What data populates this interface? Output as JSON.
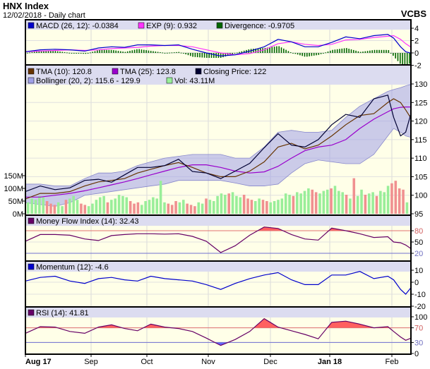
{
  "header": {
    "title": "HNX Index",
    "subtitle": "12/02/2018 - Daily chart",
    "brand": "VCBS"
  },
  "legends": {
    "macd": {
      "macd": "MACD (26, 12): -0.0384",
      "exp": "EXP (9): 0.932",
      "divergence": "Divergence: -0.9705"
    },
    "price": {
      "tma10": "TMA (10): 120.8",
      "tma25": "TMA (25): 123.8",
      "close": "Closing Price: 122",
      "bollinger": "Bollinger (20, 2): 115.6 - 129.9",
      "vol": "Vol: 43.11M"
    },
    "mfi": "Money Flow Index (14): 32.43",
    "momentum": "Momentum (12): -4.6",
    "rsi": "RSI (14): 41.81"
  },
  "colors": {
    "macd": "#0000cc",
    "exp": "#ff33ff",
    "divergence": "#006600",
    "tma10": "#663300",
    "tma25": "#9900cc",
    "close": "#000033",
    "bollinger": "#a0a0e8",
    "vol_up": "#99ee99",
    "vol_down": "#f09090",
    "mfi": "#660066",
    "momentum": "#0000cc",
    "rsi": "#660066",
    "overbought": "#ff6060",
    "oversold": "#6666ff",
    "plot_bg": "#ffffe8",
    "legend_bg": "#dcdcf0"
  },
  "chart_data": [
    {
      "type": "line",
      "panel": "macd",
      "x": [
        "2017-08-01",
        "2017-08-08",
        "2017-08-15",
        "2017-08-22",
        "2017-08-29",
        "2017-09-05",
        "2017-09-12",
        "2017-09-19",
        "2017-09-26",
        "2017-10-03",
        "2017-10-10",
        "2017-10-17",
        "2017-10-24",
        "2017-10-31",
        "2017-11-07",
        "2017-11-14",
        "2017-11-21",
        "2017-11-28",
        "2017-12-05",
        "2017-12-12",
        "2017-12-19",
        "2017-12-26",
        "2018-01-02",
        "2018-01-09",
        "2018-01-16",
        "2018-01-23",
        "2018-01-30",
        "2018-02-02",
        "2018-02-06",
        "2018-02-09",
        "2018-02-12"
      ],
      "series": [
        {
          "name": "MACD (26, 12)",
          "values": [
            0.2,
            0.5,
            0.6,
            0.5,
            0.3,
            0.8,
            1.0,
            0.9,
            1.3,
            1.3,
            1.2,
            1.3,
            0.6,
            0,
            -0.5,
            -0.3,
            0.3,
            1.0,
            2.2,
            1.8,
            1.0,
            1.0,
            1.7,
            2.6,
            2.3,
            2.8,
            3.0,
            2.4,
            1.0,
            0.2,
            -0.04
          ]
        },
        {
          "name": "EXP (9)",
          "values": [
            0.2,
            0.3,
            0.4,
            0.5,
            0.4,
            0.5,
            0.7,
            0.8,
            0.9,
            1.1,
            1.2,
            1.2,
            1.0,
            0.5,
            0,
            -0.3,
            -0.1,
            0.5,
            1.5,
            1.8,
            1.4,
            1.2,
            1.4,
            2.1,
            2.2,
            2.5,
            2.7,
            2.8,
            2.2,
            1.5,
            0.93
          ]
        }
      ],
      "ylim": [
        -2,
        4.5
      ],
      "yticks": [
        "4",
        "2",
        "0",
        "-2"
      ],
      "ytick_values": [
        4,
        2,
        0,
        -2
      ]
    },
    {
      "type": "line",
      "panel": "price",
      "series": [
        {
          "name": "Closing Price",
          "values": [
            101,
            102.5,
            101.5,
            102,
            104,
            104.3,
            103.5,
            105.5,
            107.5,
            107.5,
            108,
            109.7,
            106.4,
            106,
            104.5,
            106.5,
            108.6,
            112.8,
            116.6,
            113.5,
            113,
            115,
            119,
            121.8,
            121,
            126,
            127,
            121,
            116,
            117,
            122
          ]
        },
        {
          "name": "TMA (10)",
          "values": [
            99,
            100.5,
            100.5,
            101,
            102.5,
            103.6,
            104,
            104.5,
            106,
            107,
            108,
            108.8,
            107.5,
            106,
            105,
            105,
            106.5,
            109,
            113,
            114,
            112.5,
            113.5,
            116,
            119,
            121.5,
            122,
            125,
            126,
            125,
            123,
            120.8
          ]
        },
        {
          "name": "TMA (25)",
          "values": [
            99.5,
            99.5,
            100,
            100.5,
            101.2,
            102,
            102.8,
            103.6,
            104.5,
            105.5,
            106.5,
            107.5,
            108.2,
            108.2,
            107.5,
            106.5,
            106,
            106.3,
            107.8,
            110,
            112,
            113,
            113.5,
            115,
            118,
            120.5,
            122.5,
            123.3,
            123.7,
            123.8,
            123.8
          ]
        },
        {
          "name": "Bollinger upper",
          "values": [
            103,
            103,
            102.5,
            102.5,
            104.5,
            106,
            106,
            106.5,
            108,
            109,
            110,
            110.5,
            111,
            111,
            111,
            110,
            110,
            113,
            117,
            117.5,
            117,
            117,
            117.5,
            121,
            124,
            126,
            128,
            128.5,
            129,
            129.5,
            129.9
          ]
        },
        {
          "name": "Bollinger lower",
          "values": [
            98,
            97.5,
            97,
            98,
            100,
            100.5,
            101,
            101.5,
            102,
            102.5,
            103,
            104,
            104,
            104,
            104,
            103.3,
            102.5,
            102.5,
            103,
            106,
            108.5,
            109.5,
            109,
            108.5,
            108.5,
            111,
            116,
            118,
            117,
            116,
            115.6
          ]
        }
      ],
      "ylim": [
        95,
        130
      ],
      "yticks": [
        "130",
        "125",
        "120",
        "115",
        "110",
        "105",
        "100",
        "95"
      ],
      "ytick_values": [
        130,
        125,
        120,
        115,
        110,
        105,
        100,
        95
      ]
    },
    {
      "type": "bar",
      "panel": "volume",
      "values": [
        45,
        60,
        55,
        70,
        65,
        50,
        40,
        35,
        45,
        30,
        55,
        60,
        70,
        55,
        40,
        35,
        30,
        40,
        55,
        65,
        70,
        45,
        55,
        60,
        75,
        70,
        65,
        50,
        40,
        45,
        35,
        50,
        55,
        65,
        60,
        130,
        45,
        40,
        35,
        50,
        45,
        55,
        40,
        35,
        30,
        45,
        40,
        60,
        55,
        50,
        70,
        80,
        75,
        80,
        85,
        70,
        65,
        75,
        60,
        55,
        50,
        60,
        55,
        50,
        45,
        50,
        55,
        60,
        80,
        75,
        70,
        85,
        80,
        90,
        100,
        95,
        85,
        80,
        90,
        95,
        100,
        110,
        90,
        85,
        75,
        60,
        140,
        70,
        95,
        75,
        80,
        85,
        70,
        90,
        85,
        110,
        120,
        130,
        100,
        95,
        45
      ],
      "up": [
        1,
        1,
        1,
        1,
        1,
        0,
        0,
        0,
        1,
        1,
        0,
        1,
        1,
        1,
        0,
        0,
        1,
        1,
        1,
        1,
        1,
        0,
        1,
        1,
        1,
        1,
        1,
        0,
        0,
        0,
        1,
        1,
        1,
        1,
        1,
        1,
        1,
        0,
        0,
        0,
        1,
        1,
        0,
        0,
        0,
        1,
        1,
        0,
        1,
        1,
        1,
        1,
        1,
        0,
        1,
        1,
        1,
        0,
        0,
        0,
        1,
        1,
        0,
        0,
        1,
        1,
        1,
        1,
        1,
        1,
        0,
        1,
        1,
        1,
        1,
        0,
        0,
        1,
        1,
        1,
        0,
        1,
        1,
        1,
        0,
        1,
        0,
        1,
        1,
        0,
        1,
        1,
        0,
        1,
        1,
        1,
        0,
        0,
        0,
        0,
        1
      ],
      "ylim": [
        0,
        150
      ],
      "yticks": [
        "150M",
        "100M",
        "50M",
        "0M"
      ],
      "ytick_values": [
        150,
        100,
        50,
        0
      ]
    },
    {
      "type": "line",
      "panel": "mfi",
      "series": [
        {
          "name": "Money Flow Index (14)",
          "values": [
            52,
            70,
            70,
            68,
            58,
            54,
            67,
            70,
            72,
            72,
            71,
            72,
            65,
            52,
            22,
            40,
            68,
            90,
            86,
            70,
            58,
            55,
            87,
            80,
            72,
            62,
            64,
            50,
            48,
            42,
            32.43
          ]
        }
      ],
      "ylim": [
        0,
        100
      ],
      "yticks": [
        "80",
        "50",
        "20"
      ],
      "ytick_values": [
        80,
        50,
        20
      ],
      "thresholds": [
        80,
        20
      ]
    },
    {
      "type": "line",
      "panel": "momentum",
      "series": [
        {
          "name": "Momentum (12)",
          "values": [
            1,
            4,
            5,
            1,
            -1,
            3,
            4,
            2,
            1,
            5,
            3,
            2,
            1,
            -2,
            -6,
            -1,
            3,
            6,
            8,
            2,
            -2,
            -2,
            6,
            6,
            9,
            3,
            5,
            2,
            -6,
            -10,
            -4.6
          ]
        }
      ],
      "ylim": [
        -20,
        10
      ],
      "yticks": [
        "10",
        "0",
        "-10",
        "-20"
      ],
      "ytick_values": [
        10,
        0,
        -10,
        -20
      ]
    },
    {
      "type": "line",
      "panel": "rsi",
      "series": [
        {
          "name": "RSI (14)",
          "values": [
            55,
            73,
            72,
            60,
            55,
            72,
            78,
            68,
            62,
            80,
            72,
            68,
            60,
            42,
            22,
            38,
            60,
            95,
            72,
            62,
            52,
            40,
            85,
            88,
            80,
            70,
            73,
            60,
            45,
            36,
            41.81
          ]
        }
      ],
      "ylim": [
        0,
        100
      ],
      "yticks": [
        "100",
        "70",
        "30",
        "0"
      ],
      "ytick_values": [
        100,
        70,
        30,
        0
      ],
      "thresholds": [
        70,
        30
      ]
    }
  ],
  "x_axis": {
    "labels": [
      "Aug 17",
      "Sep",
      "Oct",
      "Nov",
      "Dec",
      "Jan 18",
      "Feb"
    ],
    "dates": [
      "2017-08-01",
      "2017-09-01",
      "2017-10-01",
      "2017-11-01",
      "2017-12-01",
      "2018-01-01",
      "2018-02-01"
    ],
    "bold": [
      true,
      false,
      false,
      false,
      false,
      true,
      false
    ]
  }
}
